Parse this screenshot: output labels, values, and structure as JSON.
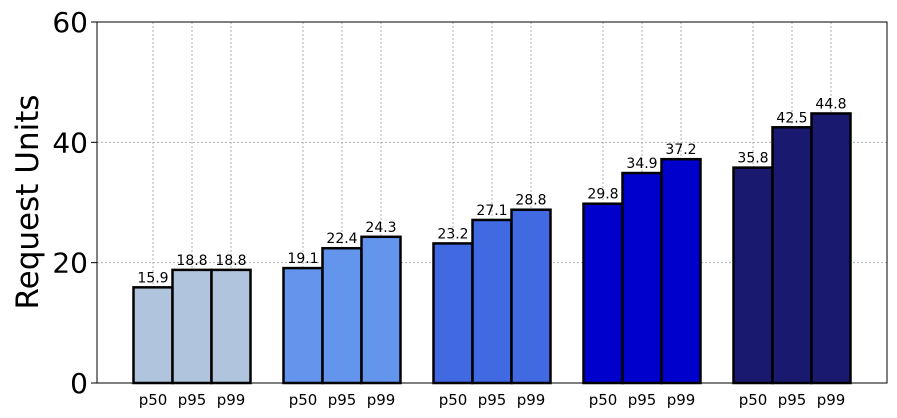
{
  "chart_data": {
    "type": "grouped_bar",
    "y_label": "Request Units",
    "ylim": [
      0,
      60
    ],
    "yticks": [
      0,
      20,
      40,
      60
    ],
    "grid": true,
    "groups": [
      {
        "color": "#b0c4de",
        "categories": [
          "p50",
          "p95",
          "p99"
        ],
        "values": [
          15.9,
          18.8,
          18.8
        ]
      },
      {
        "color": "#6495ed",
        "categories": [
          "p50",
          "p95",
          "p99"
        ],
        "values": [
          19.1,
          22.4,
          24.3
        ]
      },
      {
        "color": "#4169e1",
        "categories": [
          "p50",
          "p95",
          "p99"
        ],
        "values": [
          23.2,
          27.1,
          28.8
        ]
      },
      {
        "color": "#0000cd",
        "categories": [
          "p50",
          "p95",
          "p99"
        ],
        "values": [
          29.8,
          34.9,
          37.2
        ]
      },
      {
        "color": "#191970",
        "categories": [
          "p50",
          "p95",
          "p99"
        ],
        "values": [
          35.8,
          42.5,
          44.8
        ]
      }
    ]
  }
}
